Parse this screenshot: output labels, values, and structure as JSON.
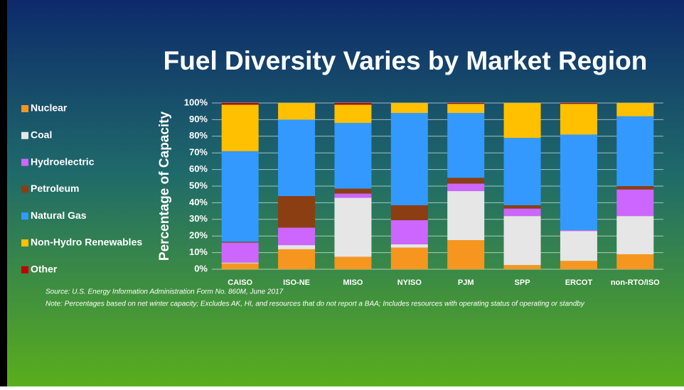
{
  "chart_data": {
    "type": "stacked_bar",
    "title": "Fuel Diversity Varies by Market Region",
    "y_label": "Percentage of Capacity",
    "source": "Source: U.S. Energy Information Administration Form No. 860M, June 2017",
    "note": "Note:  Percentages based on net winter capacity; Excludes AK, HI, and resources that do not report a BAA; Includes  resources with operating status of operating or standby",
    "categories": [
      "CAISO",
      "ISO-NE",
      "MISO",
      "NYISO",
      "PJM",
      "SPP",
      "ERCOT",
      "non-RTO/ISO"
    ],
    "ylim": [
      0,
      100
    ],
    "yticks": [
      {
        "value": 0,
        "label": "0%"
      },
      {
        "value": 10,
        "label": "10%"
      },
      {
        "value": 20,
        "label": "20%"
      },
      {
        "value": 30,
        "label": "30%"
      },
      {
        "value": 40,
        "label": "40%"
      },
      {
        "value": 50,
        "label": "50%"
      },
      {
        "value": 60,
        "label": "60%"
      },
      {
        "value": 70,
        "label": "70%"
      },
      {
        "value": 80,
        "label": "80%"
      },
      {
        "value": 90,
        "label": "90%"
      },
      {
        "value": 100,
        "label": "100%"
      }
    ],
    "grid": true,
    "series": [
      {
        "name": "Nuclear",
        "color": "#f7961e",
        "values": [
          3.5,
          12,
          7.5,
          13,
          17.5,
          2.5,
          5,
          9
        ]
      },
      {
        "name": "Coal",
        "color": "#e6e6e6",
        "values": [
          0.5,
          2.5,
          35.5,
          2,
          29.5,
          29.5,
          18,
          23
        ]
      },
      {
        "name": "Hydroelectric",
        "color": "#cc66ff",
        "values": [
          12,
          10.5,
          2.5,
          14.5,
          4.5,
          4.5,
          0.5,
          16
        ]
      },
      {
        "name": "Petroleum",
        "color": "#8b3e12",
        "values": [
          0.5,
          19,
          3,
          9,
          3.5,
          2,
          0,
          2
        ]
      },
      {
        "name": "Natural Gas",
        "color": "#3399ff",
        "values": [
          54.5,
          46,
          39.5,
          55.5,
          39,
          40.5,
          57.5,
          42
        ]
      },
      {
        "name": "Non-Hydro Renewables",
        "color": "#ffc000",
        "values": [
          28,
          10,
          11,
          6,
          5.5,
          21,
          18.5,
          8
        ]
      },
      {
        "name": "Other",
        "color": "#c00000",
        "values": [
          1,
          0,
          1,
          0,
          0.5,
          0,
          0.5,
          0
        ]
      }
    ]
  }
}
